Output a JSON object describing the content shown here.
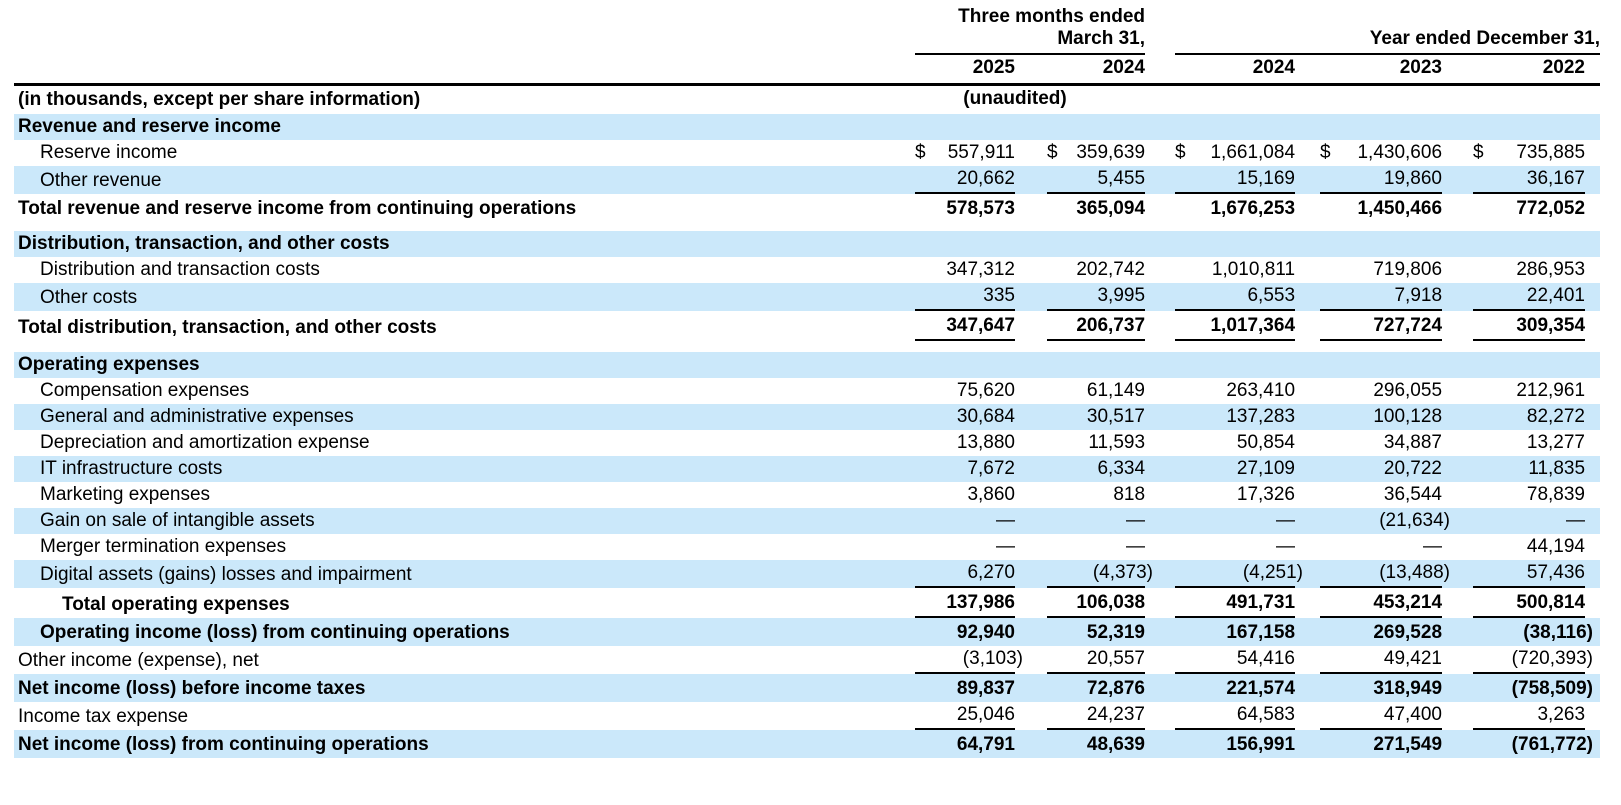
{
  "header": {
    "group1_line1": "Three months ended",
    "group1_line2": "March 31,",
    "group2": "Year ended December 31,",
    "years": [
      "2025",
      "2024",
      "2024",
      "2023",
      "2022"
    ],
    "left_note": "(in thousands, except per share information)",
    "unaudited_note": "(unaudited)"
  },
  "colors": {
    "row_shade_blue": "#cbe8fa",
    "rule_black": "#000000"
  },
  "rows": [
    {
      "section": true,
      "shaded": true,
      "bold": true,
      "indent": 0,
      "label": "Revenue and reserve income"
    },
    {
      "indent": 1,
      "currency": true,
      "label": "Reserve income",
      "values": [
        "557,911",
        "359,639",
        "1,661,084",
        "1,430,606",
        "735,885"
      ]
    },
    {
      "indent": 1,
      "shaded": true,
      "underline": true,
      "label": "Other revenue",
      "values": [
        "20,662",
        "5,455",
        "15,169",
        "19,860",
        "36,167"
      ]
    },
    {
      "bold": true,
      "total": true,
      "indent": 0,
      "label": "Total revenue and reserve income from continuing operations",
      "values": [
        "578,573",
        "365,094",
        "1,676,253",
        "1,450,466",
        "772,052"
      ]
    },
    {
      "spacer": 8
    },
    {
      "section": true,
      "shaded": true,
      "bold": true,
      "indent": 0,
      "label": "Distribution, transaction, and other costs"
    },
    {
      "indent": 1,
      "label": "Distribution and transaction costs",
      "values": [
        "347,312",
        "202,742",
        "1,010,811",
        "719,806",
        "286,953"
      ]
    },
    {
      "indent": 1,
      "shaded": true,
      "underline": true,
      "label": "Other costs",
      "values": [
        "335",
        "3,995",
        "6,553",
        "7,918",
        "22,401"
      ]
    },
    {
      "bold": true,
      "total": true,
      "underline": true,
      "indent": 0,
      "label": "Total distribution, transaction, and other costs",
      "values": [
        "347,647",
        "206,737",
        "1,017,364",
        "727,724",
        "309,354"
      ]
    },
    {
      "spacer": 11
    },
    {
      "section": true,
      "shaded": true,
      "bold": true,
      "indent": 0,
      "label": "Operating expenses"
    },
    {
      "indent": 1,
      "label": "Compensation expenses",
      "values": [
        "75,620",
        "61,149",
        "263,410",
        "296,055",
        "212,961"
      ]
    },
    {
      "indent": 1,
      "shaded": true,
      "label": "General and administrative expenses",
      "values": [
        "30,684",
        "30,517",
        "137,283",
        "100,128",
        "82,272"
      ]
    },
    {
      "indent": 1,
      "label": "Depreciation and amortization expense",
      "values": [
        "13,880",
        "11,593",
        "50,854",
        "34,887",
        "13,277"
      ]
    },
    {
      "indent": 1,
      "shaded": true,
      "label": "IT infrastructure costs",
      "values": [
        "7,672",
        "6,334",
        "27,109",
        "20,722",
        "11,835"
      ]
    },
    {
      "indent": 1,
      "label": "Marketing expenses",
      "values": [
        "3,860",
        "818",
        "17,326",
        "36,544",
        "78,839"
      ]
    },
    {
      "indent": 1,
      "shaded": true,
      "label": "Gain on sale of intangible assets",
      "values": [
        "—",
        "—",
        "—",
        "(21,634)",
        "—"
      ]
    },
    {
      "indent": 1,
      "label": "Merger termination expenses",
      "values": [
        "—",
        "—",
        "—",
        "—",
        "44,194"
      ]
    },
    {
      "indent": 1,
      "shaded": true,
      "underline": true,
      "label": "Digital assets (gains) losses and impairment",
      "values": [
        "6,270",
        "(4,373)",
        "(4,251)",
        "(13,488)",
        "57,436"
      ]
    },
    {
      "bold": true,
      "total": true,
      "underline": true,
      "indent": 2,
      "label": "Total operating expenses",
      "values": [
        "137,986",
        "106,038",
        "491,731",
        "453,214",
        "500,814"
      ]
    },
    {
      "bold": true,
      "total": true,
      "shaded": true,
      "indent": 1,
      "label": "Operating income (loss) from continuing operations",
      "values": [
        "92,940",
        "52,319",
        "167,158",
        "269,528",
        "(38,116)"
      ]
    },
    {
      "indent": 0,
      "underline": true,
      "label": "Other income (expense), net",
      "values": [
        "(3,103)",
        "20,557",
        "54,416",
        "49,421",
        "(720,393)"
      ]
    },
    {
      "bold": true,
      "total": true,
      "shaded": true,
      "indent": 0,
      "label": "Net income (loss) before income taxes",
      "values": [
        "89,837",
        "72,876",
        "221,574",
        "318,949",
        "(758,509)"
      ]
    },
    {
      "indent": 0,
      "underline": true,
      "label": "Income tax expense",
      "values": [
        "25,046",
        "24,237",
        "64,583",
        "47,400",
        "3,263"
      ]
    },
    {
      "bold": true,
      "total": true,
      "shaded": true,
      "indent": 0,
      "label": "Net income (loss) from continuing operations",
      "values": [
        "64,791",
        "48,639",
        "156,991",
        "271,549",
        "(761,772)"
      ]
    }
  ]
}
